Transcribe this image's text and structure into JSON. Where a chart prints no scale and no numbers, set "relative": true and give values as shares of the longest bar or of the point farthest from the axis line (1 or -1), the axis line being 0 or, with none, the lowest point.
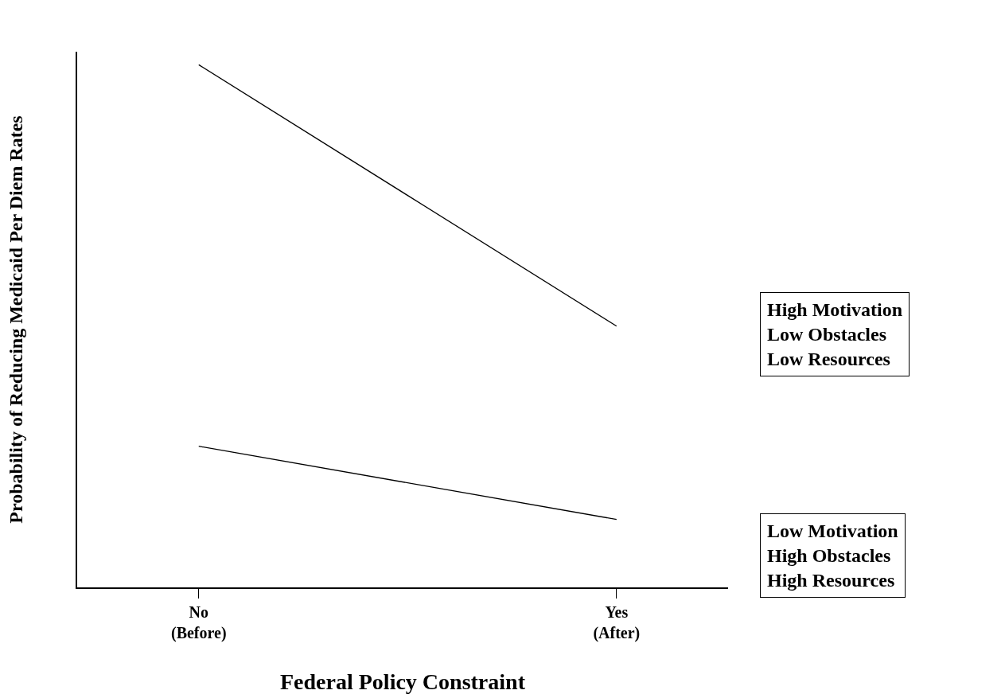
{
  "chart_data": {
    "type": "line",
    "relative": true,
    "xlabel": "Federal Policy Constraint",
    "ylabel": "Probability of Reducing Medicaid Per Diem Rates",
    "categories": [
      "No\n(Before)",
      "Yes\n(After)"
    ],
    "series": [
      {
        "name": "High Motivation\nLow Obstacles\nLow Resources",
        "color": "#000000",
        "values": [
          1,
          0.5
        ]
      },
      {
        "name": "Low Motivation\nHigh Obstacles\nHigh Resources",
        "color": "#000000",
        "values": [
          0.27,
          0.13
        ]
      }
    ]
  }
}
